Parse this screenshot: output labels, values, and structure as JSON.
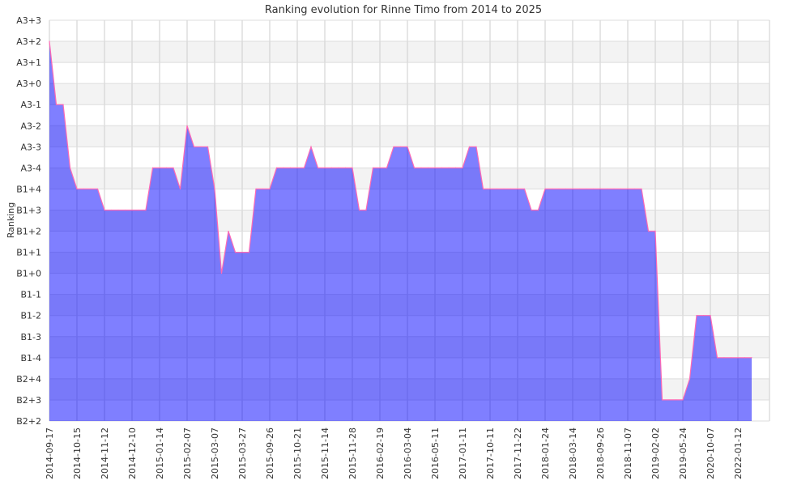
{
  "chart_data": {
    "type": "area",
    "title": "Ranking evolution for Rinne Timo from 2014 to 2025",
    "ylabel": "Ranking",
    "xlabel": "",
    "y_categories": [
      "B2+2",
      "B2+3",
      "B2+4",
      "B1-4",
      "B1-3",
      "B1-2",
      "B1-1",
      "B1+0",
      "B1+1",
      "B1+2",
      "B1+3",
      "B1+4",
      "A3-4",
      "A3-3",
      "A3-2",
      "A3-1",
      "A3+0",
      "A3+1",
      "A3+2",
      "A3+3"
    ],
    "x_tick_labels": [
      "2014-09-17",
      "2014-10-15",
      "2014-11-12",
      "2014-12-10",
      "2015-01-14",
      "2015-02-07",
      "2015-03-07",
      "2015-03-27",
      "2015-09-26",
      "2015-10-21",
      "2015-11-14",
      "2015-11-28",
      "2016-02-19",
      "2016-03-04",
      "2016-05-11",
      "2017-01-11",
      "2017-10-11",
      "2017-11-22",
      "2018-01-24",
      "2018-03-14",
      "2018-09-26",
      "2018-11-07",
      "2019-02-02",
      "2019-05-24",
      "2020-10-07",
      "2022-01-12"
    ],
    "points_per_tick": 4,
    "values_level_index": [
      18,
      15,
      15,
      12,
      11,
      11,
      11,
      11,
      10,
      10,
      10,
      10,
      10,
      10,
      10,
      12,
      12,
      12,
      12,
      11,
      14,
      13,
      13,
      13,
      11,
      7,
      9,
      8,
      8,
      8,
      11,
      11,
      11,
      12,
      12,
      12,
      12,
      12,
      13,
      12,
      12,
      12,
      12,
      12,
      12,
      10,
      10,
      12,
      12,
      12,
      13,
      13,
      13,
      12,
      12,
      12,
      12,
      12,
      12,
      12,
      12,
      13,
      13,
      11,
      11,
      11,
      11,
      11,
      11,
      11,
      10,
      10,
      11,
      11,
      11,
      11,
      11,
      11,
      11,
      11,
      11,
      11,
      11,
      11,
      11,
      11,
      11,
      9,
      9,
      1,
      1,
      1,
      1,
      2,
      5,
      5,
      5,
      3,
      3,
      3,
      3,
      3,
      3
    ],
    "grid": true,
    "legend": "none",
    "colors": {
      "fill": "#0000ff",
      "line": "#ff69b4",
      "grid": "#cccccc",
      "band": "#f3f3f3"
    }
  }
}
